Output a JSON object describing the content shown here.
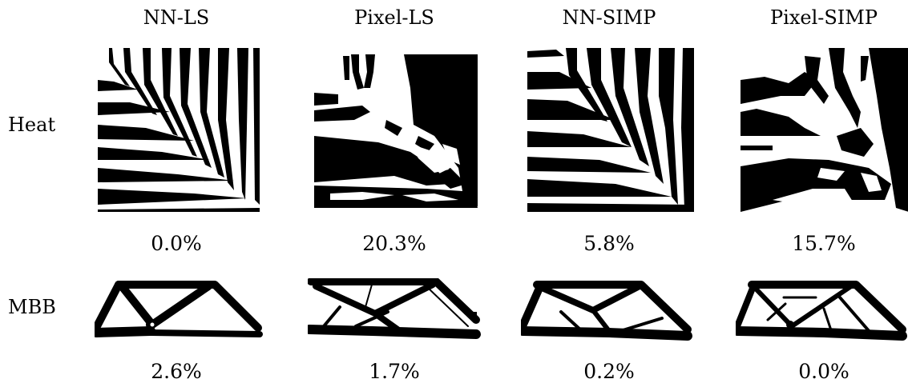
{
  "columns": [
    "NN-LS",
    "Pixel-LS",
    "NN-SIMP",
    "Pixel-SIMP"
  ],
  "rows": [
    {
      "label": "Heat",
      "values": [
        "0.0%",
        "20.3%",
        "5.8%",
        "15.7%"
      ]
    },
    {
      "label": "MBB",
      "values": [
        "2.6%",
        "1.7%",
        "0.2%",
        "0.0%"
      ]
    }
  ],
  "colors": {
    "material": "#000000",
    "void": "#ffffff"
  }
}
